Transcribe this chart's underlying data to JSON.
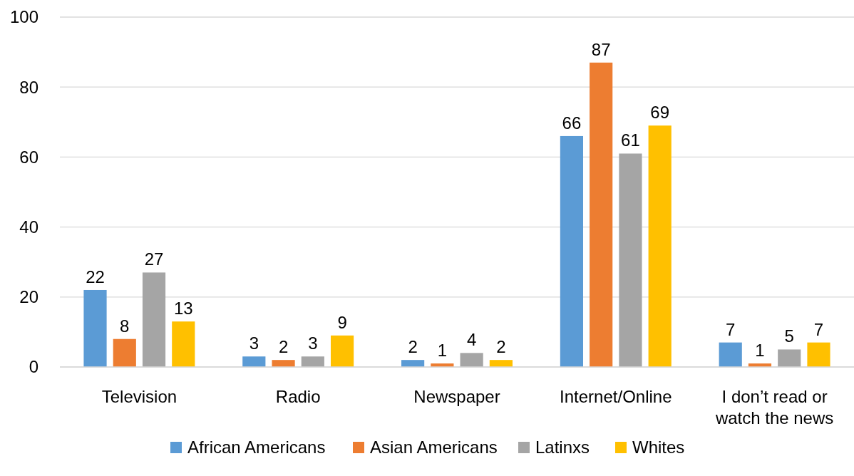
{
  "chart_data": {
    "type": "bar",
    "categories": [
      "Television",
      "Radio",
      "Newspaper",
      "Internet/Online",
      "I don’t read or watch the news"
    ],
    "series": [
      {
        "name": "African Americans",
        "color": "#5b9bd5",
        "values": [
          22,
          3,
          2,
          66,
          7
        ]
      },
      {
        "name": "Asian Americans",
        "color": "#ed7d31",
        "values": [
          8,
          2,
          1,
          87,
          1
        ]
      },
      {
        "name": "Latinxs",
        "color": "#a5a5a5",
        "values": [
          27,
          3,
          4,
          61,
          5
        ]
      },
      {
        "name": "Whites",
        "color": "#ffc000",
        "values": [
          13,
          9,
          2,
          69,
          7
        ]
      }
    ],
    "ylim": [
      0,
      100
    ],
    "yticks": [
      0,
      20,
      40,
      60,
      80,
      100
    ],
    "grid": "y",
    "legend": "bottom",
    "data_labels": true
  }
}
